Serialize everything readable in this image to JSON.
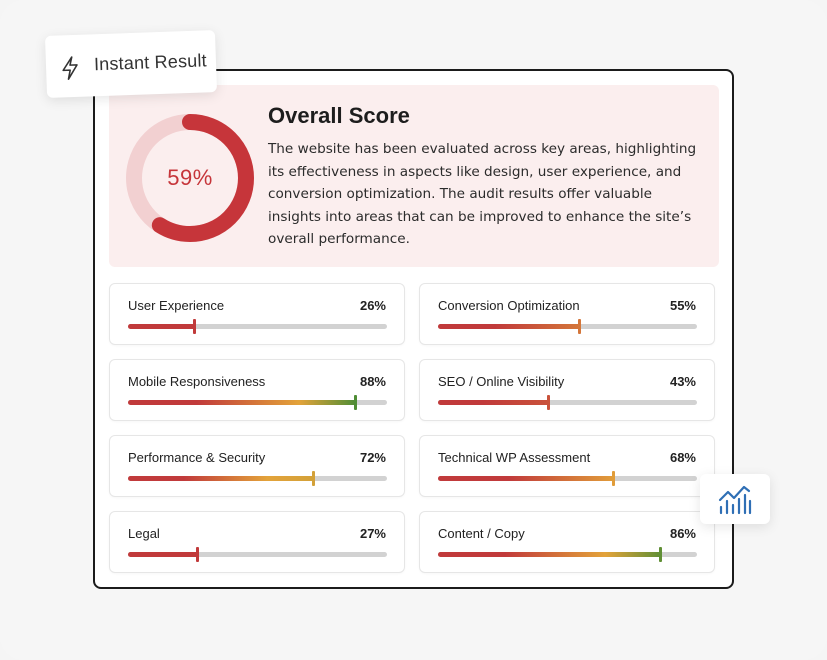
{
  "badge": {
    "label": "Instant Result",
    "icon": "lightning-icon"
  },
  "overall": {
    "title": "Overall Score",
    "score_label": "59%",
    "score_fraction": 0.59,
    "description": "The website has been evaluated across key areas, highlighting its effectiveness in aspects like design, user experience, and conversion optimization. The audit results offer valuable insights into areas that can be improved to enhance the site’s overall performance.",
    "ring_color": "#c6353a",
    "ring_track_color": "#f2d0d1"
  },
  "metrics": [
    {
      "label": "User Experience",
      "percent_label": "26%",
      "value": 0.26
    },
    {
      "label": "Conversion Optimization",
      "percent_label": "55%",
      "value": 0.55
    },
    {
      "label": "Mobile Responsiveness",
      "percent_label": "88%",
      "value": 0.88
    },
    {
      "label": "SEO / Online Visibility",
      "percent_label": "43%",
      "value": 0.43
    },
    {
      "label": "Performance & Security",
      "percent_label": "72%",
      "value": 0.72
    },
    {
      "label": "Technical WP Assessment",
      "percent_label": "68%",
      "value": 0.68
    },
    {
      "label": "Legal",
      "percent_label": "27%",
      "value": 0.27
    },
    {
      "label": "Content / Copy",
      "percent_label": "86%",
      "value": 0.86
    }
  ],
  "colors": {
    "low": "#c13a3b",
    "mid": "#e3a33a",
    "high": "#3f8a34",
    "track": "#d2d2d2",
    "hero_background": "#fbeeee"
  },
  "chart_badge": {
    "icon": "trending-chart-icon",
    "color": "#2f6fb5"
  }
}
